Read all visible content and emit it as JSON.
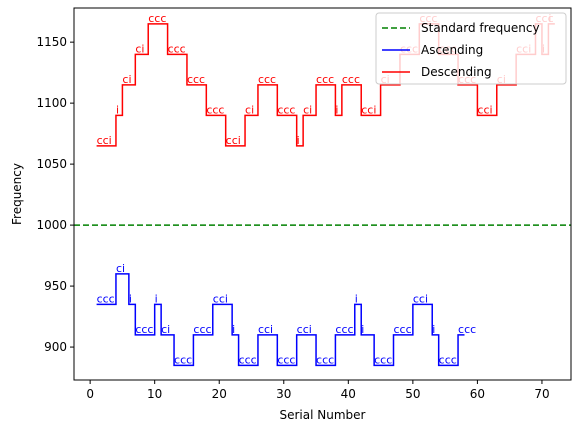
{
  "chart_data": {
    "type": "line",
    "step": true,
    "xlabel": "Serial Number",
    "ylabel": "Frequency",
    "xlim": [
      -2.5,
      74.5
    ],
    "ylim": [
      873,
      1178
    ],
    "xticks": [
      0,
      10,
      20,
      30,
      40,
      50,
      60,
      70
    ],
    "yticks": [
      900,
      950,
      1000,
      1050,
      1100,
      1150
    ],
    "grid": false,
    "legend_position": "top-right",
    "reference_line": {
      "name": "Standard frequency",
      "y": 1000,
      "color": "#008000",
      "style": "dashed"
    },
    "series": [
      {
        "name": "Ascending",
        "color": "#0000ff",
        "points": [
          [
            1,
            935
          ],
          [
            4,
            960
          ],
          [
            6,
            935
          ],
          [
            7,
            910
          ],
          [
            10,
            935
          ],
          [
            11,
            910
          ],
          [
            13,
            885
          ],
          [
            16,
            910
          ],
          [
            19,
            935
          ],
          [
            22,
            910
          ],
          [
            23,
            885
          ],
          [
            26,
            910
          ],
          [
            29,
            885
          ],
          [
            32,
            910
          ],
          [
            35,
            885
          ],
          [
            38,
            910
          ],
          [
            41,
            935
          ],
          [
            42,
            910
          ],
          [
            44,
            885
          ],
          [
            47,
            910
          ],
          [
            50,
            935
          ],
          [
            53,
            910
          ],
          [
            54,
            885
          ],
          [
            57,
            910
          ],
          [
            58,
            910
          ]
        ],
        "labels": [
          [
            1,
            "ccc"
          ],
          [
            4,
            "ci"
          ],
          [
            6,
            "i"
          ],
          [
            7,
            "ccc"
          ],
          [
            10,
            "i"
          ],
          [
            11,
            "ci"
          ],
          [
            13,
            "ccc"
          ],
          [
            16,
            "ccc"
          ],
          [
            19,
            "cci"
          ],
          [
            22,
            "i"
          ],
          [
            23,
            "ccc"
          ],
          [
            26,
            "cci"
          ],
          [
            29,
            "ccc"
          ],
          [
            32,
            "cci"
          ],
          [
            35,
            "ccc"
          ],
          [
            38,
            "ccc"
          ],
          [
            41,
            "i"
          ],
          [
            42,
            "i"
          ],
          [
            44,
            "ccc"
          ],
          [
            47,
            "ccc"
          ],
          [
            50,
            "cci"
          ],
          [
            53,
            "i"
          ],
          [
            54,
            "ccc"
          ],
          [
            57,
            "ccc"
          ]
        ]
      },
      {
        "name": "Descending",
        "color": "#ff0000",
        "points": [
          [
            1,
            1065
          ],
          [
            4,
            1090
          ],
          [
            5,
            1115
          ],
          [
            7,
            1140
          ],
          [
            9,
            1165
          ],
          [
            12,
            1140
          ],
          [
            15,
            1115
          ],
          [
            18,
            1090
          ],
          [
            21,
            1065
          ],
          [
            24,
            1090
          ],
          [
            26,
            1115
          ],
          [
            29,
            1090
          ],
          [
            32,
            1065
          ],
          [
            33,
            1090
          ],
          [
            35,
            1115
          ],
          [
            38,
            1090
          ],
          [
            39,
            1115
          ],
          [
            42,
            1090
          ],
          [
            45,
            1115
          ],
          [
            48,
            1140
          ],
          [
            51,
            1165
          ],
          [
            54,
            1140
          ],
          [
            57,
            1115
          ],
          [
            60,
            1090
          ],
          [
            63,
            1115
          ],
          [
            66,
            1140
          ],
          [
            69,
            1165
          ],
          [
            70,
            1140
          ],
          [
            71,
            1165
          ],
          [
            72,
            1165
          ]
        ],
        "labels": [
          [
            1,
            "cci"
          ],
          [
            4,
            "i"
          ],
          [
            5,
            "ci"
          ],
          [
            7,
            "ci"
          ],
          [
            9,
            "ccc"
          ],
          [
            12,
            "ccc"
          ],
          [
            15,
            "ccc"
          ],
          [
            18,
            "ccc"
          ],
          [
            21,
            "cci"
          ],
          [
            24,
            "ci"
          ],
          [
            26,
            "ccc"
          ],
          [
            29,
            "ccc"
          ],
          [
            32,
            "i"
          ],
          [
            33,
            "ci"
          ],
          [
            35,
            "ccc"
          ],
          [
            38,
            "i"
          ],
          [
            39,
            "ccc"
          ],
          [
            42,
            "cci"
          ],
          [
            45,
            "ci"
          ],
          [
            48,
            "ccc"
          ],
          [
            51,
            "ccc"
          ],
          [
            54,
            "ccc"
          ],
          [
            57,
            "ccc"
          ],
          [
            60,
            "cci"
          ],
          [
            63,
            "ci"
          ],
          [
            66,
            "cci"
          ],
          [
            69,
            "ccc"
          ],
          [
            70,
            "i"
          ],
          [
            71,
            "i"
          ]
        ]
      }
    ]
  }
}
